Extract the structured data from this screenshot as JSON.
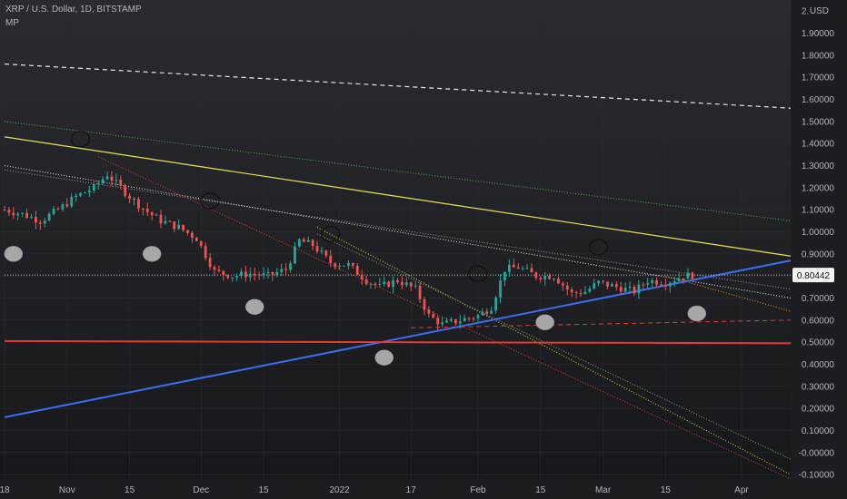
{
  "header": {
    "symbol_line": "XRP / U.S. Dollar, 1D, BITSTAMP",
    "indicator": "MP"
  },
  "colors": {
    "background": "#1c1d21",
    "up": "#26a69a",
    "down": "#ef5350",
    "yellow_trend": "#e8e34a",
    "blue_trend": "#3d6df0",
    "red_support": "#e53935",
    "circle_fill": "#a7a7a7",
    "grid": "#2a2c33"
  },
  "chart_data": {
    "type": "line",
    "title": "XRP / U.S. Dollar, 1D, BITSTAMP",
    "ylabel": "USD",
    "currency": "USD",
    "ylim": [
      -0.12,
      2.05
    ],
    "xlim": [
      "2021-10-18",
      "2022-04-12"
    ],
    "y_ticks": [
      "2.00000",
      "1.90000",
      "1.80000",
      "1.70000",
      "1.60000",
      "1.50000",
      "1.40000",
      "1.30000",
      "1.20000",
      "1.10000",
      "1.00000",
      "0.90000",
      "0.80000",
      "0.70000",
      "0.60000",
      "0.50000",
      "0.40000",
      "0.30000",
      "0.20000",
      "0.10000",
      "-0.00000",
      "-0.10000"
    ],
    "x_ticks": [
      {
        "label": "18",
        "date": "2021-10-18"
      },
      {
        "label": "Nov",
        "date": "2021-11-01"
      },
      {
        "label": "15",
        "date": "2021-11-15"
      },
      {
        "label": "Dec",
        "date": "2021-12-01"
      },
      {
        "label": "15",
        "date": "2021-12-15"
      },
      {
        "label": "2022",
        "date": "2022-01-01"
      },
      {
        "label": "17",
        "date": "2022-01-17"
      },
      {
        "label": "Feb",
        "date": "2022-02-01"
      },
      {
        "label": "15",
        "date": "2022-02-15"
      },
      {
        "label": "Mar",
        "date": "2022-03-01"
      },
      {
        "label": "15",
        "date": "2022-03-15"
      },
      {
        "label": "Apr",
        "date": "2022-04-01"
      }
    ],
    "last_price": "0.80442",
    "price_path": [
      [
        "2021-10-18",
        1.1
      ],
      [
        "2021-10-22",
        1.08
      ],
      [
        "2021-10-26",
        1.05
      ],
      [
        "2021-10-30",
        1.1
      ],
      [
        "2021-11-03",
        1.16
      ],
      [
        "2021-11-07",
        1.2
      ],
      [
        "2021-11-10",
        1.26
      ],
      [
        "2021-11-13",
        1.2
      ],
      [
        "2021-11-16",
        1.14
      ],
      [
        "2021-11-19",
        1.09
      ],
      [
        "2021-11-22",
        1.05
      ],
      [
        "2021-11-26",
        1.02
      ],
      [
        "2021-11-30",
        0.97
      ],
      [
        "2021-12-04",
        0.82
      ],
      [
        "2021-12-08",
        0.8
      ],
      [
        "2021-12-12",
        0.81
      ],
      [
        "2021-12-16",
        0.8
      ],
      [
        "2021-12-20",
        0.83
      ],
      [
        "2021-12-23",
        0.96
      ],
      [
        "2021-12-26",
        0.94
      ],
      [
        "2021-12-30",
        0.86
      ],
      [
        "2022-01-03",
        0.85
      ],
      [
        "2022-01-07",
        0.78
      ],
      [
        "2022-01-10",
        0.75
      ],
      [
        "2022-01-14",
        0.78
      ],
      [
        "2022-01-18",
        0.74
      ],
      [
        "2022-01-21",
        0.62
      ],
      [
        "2022-01-24",
        0.58
      ],
      [
        "2022-01-28",
        0.6
      ],
      [
        "2022-02-01",
        0.62
      ],
      [
        "2022-02-04",
        0.66
      ],
      [
        "2022-02-07",
        0.83
      ],
      [
        "2022-02-10",
        0.84
      ],
      [
        "2022-02-14",
        0.8
      ],
      [
        "2022-02-18",
        0.8
      ],
      [
        "2022-02-22",
        0.72
      ],
      [
        "2022-02-25",
        0.73
      ],
      [
        "2022-02-28",
        0.77
      ],
      [
        "2022-03-04",
        0.75
      ],
      [
        "2022-03-08",
        0.73
      ],
      [
        "2022-03-11",
        0.78
      ],
      [
        "2022-03-15",
        0.77
      ],
      [
        "2022-03-19",
        0.8
      ],
      [
        "2022-03-21",
        0.80442
      ]
    ],
    "lines": [
      {
        "name": "white-dashed-top",
        "color": "#e8e8e8",
        "dash": "5,4",
        "width": 1.2,
        "from": [
          "2021-10-18",
          1.76
        ],
        "to": [
          "2022-04-12",
          1.56
        ]
      },
      {
        "name": "green-dotted",
        "color": "#4caf50",
        "dash": "1,2",
        "width": 1,
        "from": [
          "2021-10-18",
          1.5
        ],
        "to": [
          "2022-04-12",
          1.05
        ]
      },
      {
        "name": "yellow-resistance",
        "color": "#e8e34a",
        "dash": "",
        "width": 1.2,
        "from": [
          "2021-10-18",
          1.43
        ],
        "to": [
          "2022-04-12",
          0.89
        ]
      },
      {
        "name": "white-dotted-upper",
        "color": "#d8d8d8",
        "dash": "1,2",
        "width": 1.1,
        "from": [
          "2021-10-18",
          1.3
        ],
        "to": [
          "2022-04-12",
          0.7
        ]
      },
      {
        "name": "white-dotted-lower",
        "color": "#9a9a9a",
        "dash": "1,2",
        "width": 1,
        "from": [
          "2021-10-18",
          1.28
        ],
        "to": [
          "2022-04-12",
          0.74
        ]
      },
      {
        "name": "red-dotted-steep",
        "color": "#e53935",
        "dash": "1,2",
        "width": 1,
        "from": [
          "2021-11-08",
          1.34
        ],
        "to": [
          "2022-04-12",
          -0.12
        ]
      },
      {
        "name": "yellow-dotted-fan",
        "color": "#cddc39",
        "dash": "1,2",
        "width": 1,
        "from": [
          "2021-12-27",
          1.02
        ],
        "to": [
          "2022-04-12",
          -0.1
        ]
      },
      {
        "name": "green-dotted-fan",
        "color": "#66bb6a",
        "dash": "1,2",
        "width": 1,
        "from": [
          "2021-12-27",
          0.99
        ],
        "to": [
          "2022-04-12",
          -0.03
        ]
      },
      {
        "name": "orange-dotted",
        "color": "#ff9800",
        "dash": "1,2",
        "width": 1,
        "from": [
          "2022-03-15",
          0.8
        ],
        "to": [
          "2022-04-12",
          0.64
        ]
      },
      {
        "name": "red-dashed-support",
        "color": "#e53935",
        "dash": "5,4",
        "width": 1,
        "from": [
          "2022-01-17",
          0.565
        ],
        "to": [
          "2022-04-12",
          0.6
        ]
      },
      {
        "name": "blue-support",
        "color": "#3d6df0",
        "dash": "",
        "width": 2,
        "from": [
          "2021-10-18",
          0.16
        ],
        "to": [
          "2022-04-12",
          0.87
        ]
      },
      {
        "name": "red-horizontal",
        "color": "#e53935",
        "dash": "",
        "width": 2,
        "from": [
          "2021-10-18",
          0.505
        ],
        "to": [
          "2022-04-12",
          0.495
        ]
      },
      {
        "name": "last-price-line",
        "color": "#c8c8c8",
        "dash": "1,2",
        "width": 1,
        "from": [
          "2021-10-18",
          0.80442
        ],
        "to": [
          "2022-04-12",
          0.80442
        ]
      }
    ],
    "markers_filled": [
      [
        "2021-10-20",
        0.9
      ],
      [
        "2021-11-20",
        0.9
      ],
      [
        "2021-12-13",
        0.66
      ],
      [
        "2022-01-11",
        0.43
      ],
      [
        "2022-02-16",
        0.59
      ],
      [
        "2022-03-22",
        0.63
      ]
    ],
    "markers_open": [
      [
        "2021-11-04",
        1.42
      ],
      [
        "2021-12-03",
        1.14
      ],
      [
        "2021-12-30",
        0.99
      ],
      [
        "2022-02-01",
        0.81
      ],
      [
        "2022-02-28",
        0.93
      ]
    ]
  }
}
